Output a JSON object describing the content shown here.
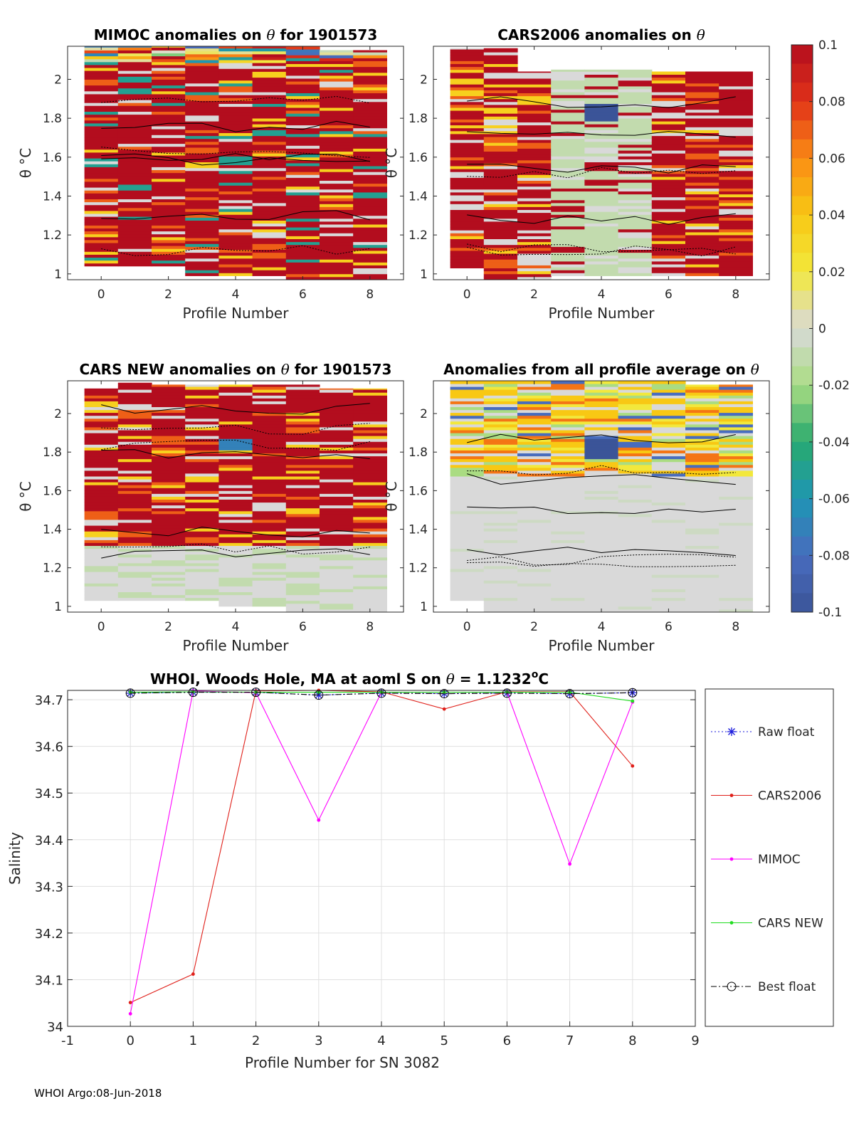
{
  "footer": "WHOI Argo:08-Jun-2018",
  "colors": {
    "red": "#e0201a",
    "magenta": "#ff00ff",
    "green": "#22dd22",
    "blue": "#1a1adc",
    "black": "#000000",
    "grid": "#e0e0e0",
    "anomaly_high": "#b30d1e",
    "anomaly_zero": "#d9d9d9",
    "anomaly_low": "#3b5aa0"
  },
  "chart_data": [
    {
      "type": "heatmap",
      "title_prefix": "MIMOC anomalies on ",
      "title_symbol": "θ",
      "title_suffix": "  for 1901573",
      "xlabel": "Profile Number",
      "ylabel": "θ °C",
      "xlim": [
        -1,
        9
      ],
      "ylim": [
        0.97,
        2.17
      ],
      "xticks": [
        0,
        2,
        4,
        6,
        8
      ],
      "yticks": [
        1,
        1.2,
        1.4,
        1.6,
        1.8,
        2
      ],
      "ytick_labels": [
        "1",
        "1.2",
        "1.4",
        "1.6",
        "1.8",
        "2"
      ],
      "profiles": [
        0,
        1,
        2,
        3,
        4,
        5,
        6,
        7,
        8
      ],
      "theta_range": [
        [
          1.04,
          2.17
        ],
        [
          1.04,
          2.17
        ],
        [
          1.04,
          2.17
        ],
        [
          0.99,
          2.17
        ],
        [
          0.99,
          2.17
        ],
        [
          0.99,
          2.17
        ],
        [
          0.97,
          2.17
        ],
        [
          0.97,
          2.15
        ],
        [
          0.97,
          2.15
        ]
      ],
      "pattern": "warm"
    },
    {
      "type": "heatmap",
      "title_prefix": "CARS2006 anomalies on ",
      "title_symbol": "θ",
      "title_suffix": "",
      "xlabel": "Profile Number",
      "ylabel": "θ °C",
      "xlim": [
        -1,
        9
      ],
      "ylim": [
        0.97,
        2.17
      ],
      "xticks": [
        0,
        2,
        4,
        6,
        8
      ],
      "yticks": [
        1,
        1.2,
        1.4,
        1.6,
        1.8,
        2
      ],
      "ytick_labels": [
        "1",
        "1.2",
        "1.4",
        "1.6",
        "1.8",
        "2"
      ],
      "profiles": [
        0,
        1,
        2,
        3,
        4,
        5,
        6,
        7,
        8
      ],
      "theta_range": [
        [
          1.03,
          2.16
        ],
        [
          0.97,
          2.16
        ],
        [
          0.97,
          2.04
        ],
        [
          0.99,
          2.05
        ],
        [
          0.99,
          2.05
        ],
        [
          0.99,
          2.05
        ],
        [
          0.99,
          2.04
        ],
        [
          0.99,
          2.04
        ],
        [
          0.99,
          2.04
        ]
      ],
      "pattern": "mixed"
    },
    {
      "type": "heatmap",
      "title_prefix": "CARS NEW anomalies on ",
      "title_symbol": "θ",
      "title_suffix": " for 1901573",
      "xlabel": "Profile Number",
      "ylabel": "θ °C",
      "xlim": [
        -1,
        9
      ],
      "ylim": [
        0.97,
        2.17
      ],
      "xticks": [
        0,
        2,
        4,
        6,
        8
      ],
      "yticks": [
        1,
        1.2,
        1.4,
        1.6,
        1.8,
        2
      ],
      "ytick_labels": [
        "1",
        "1.2",
        "1.4",
        "1.6",
        "1.8",
        "2"
      ],
      "profiles": [
        0,
        1,
        2,
        3,
        4,
        5,
        6,
        7,
        8
      ],
      "theta_range": [
        [
          1.03,
          2.13
        ],
        [
          1.03,
          2.16
        ],
        [
          1.03,
          2.15
        ],
        [
          1.03,
          2.15
        ],
        [
          1.0,
          2.15
        ],
        [
          1.0,
          2.15
        ],
        [
          0.97,
          2.15
        ],
        [
          0.97,
          2.13
        ],
        [
          0.97,
          2.13
        ]
      ],
      "pattern": "warm_top"
    },
    {
      "type": "heatmap",
      "title_prefix": "Anomalies from all profile average on ",
      "title_symbol": "θ",
      "title_suffix": "",
      "xlabel": "Profile Number",
      "ylabel": "θ °C",
      "xlim": [
        -1,
        9
      ],
      "ylim": [
        0.97,
        2.17
      ],
      "xticks": [
        0,
        2,
        4,
        6,
        8
      ],
      "yticks": [
        1,
        1.2,
        1.4,
        1.6,
        1.8,
        2
      ],
      "ytick_labels": [
        "1",
        "1.2",
        "1.4",
        "1.6",
        "1.8",
        "2"
      ],
      "profiles": [
        0,
        1,
        2,
        3,
        4,
        5,
        6,
        7,
        8
      ],
      "theta_range": [
        [
          1.03,
          2.17
        ],
        [
          0.97,
          2.17
        ],
        [
          0.97,
          2.17
        ],
        [
          0.97,
          2.17
        ],
        [
          0.97,
          2.17
        ],
        [
          0.97,
          2.17
        ],
        [
          0.97,
          2.17
        ],
        [
          0.97,
          2.15
        ],
        [
          0.97,
          2.15
        ]
      ],
      "pattern": "banded"
    },
    {
      "type": "colorbar",
      "min": -0.1,
      "max": 0.1,
      "ticks": [
        0.1,
        0.08,
        0.06,
        0.04,
        0.02,
        0,
        -0.02,
        -0.04,
        -0.06,
        -0.08,
        -0.1
      ],
      "tick_labels": [
        "0.1",
        "0.08",
        "0.06",
        "0.04",
        "0.02",
        "0",
        "-0.02",
        "-0.04",
        "-0.06",
        "-0.08",
        "-0.1"
      ]
    },
    {
      "type": "line",
      "title_prefix": "WHOI, Woods Hole, MA at aoml S on ",
      "title_symbol": "θ",
      "title_value": " = 1.1232",
      "title_sup": "o",
      "title_unit": "C",
      "xlabel": "Profile Number for SN 3082",
      "ylabel": "Salinity",
      "xlim": [
        -1,
        9
      ],
      "ylim": [
        34,
        34.72
      ],
      "xticks": [
        -1,
        0,
        1,
        2,
        3,
        4,
        5,
        6,
        7,
        8,
        9
      ],
      "xtick_labels": [
        "-1",
        "0",
        "1",
        "2",
        "3",
        "4",
        "5",
        "6",
        "7",
        "8",
        "9"
      ],
      "yticks": [
        34,
        34.1,
        34.2,
        34.3,
        34.4,
        34.5,
        34.6,
        34.7
      ],
      "ytick_labels": [
        "34",
        "34.1",
        "34.2",
        "34.3",
        "34.4",
        "34.5",
        "34.6",
        "34.7"
      ],
      "x": [
        0,
        1,
        2,
        3,
        4,
        5,
        6,
        7,
        8
      ],
      "series": [
        {
          "name": "Raw float",
          "color": "#1a1adc",
          "style": "dotted",
          "marker": "star",
          "values": [
            34.714,
            34.716,
            34.716,
            34.71,
            34.714,
            34.713,
            34.714,
            34.713,
            34.715
          ]
        },
        {
          "name": "CARS2006",
          "color": "#e0201a",
          "style": "solid",
          "marker": "dot",
          "values": [
            34.051,
            34.112,
            34.719,
            34.72,
            34.717,
            34.68,
            34.717,
            34.717,
            34.558
          ]
        },
        {
          "name": "MIMOC",
          "color": "#ff00ff",
          "style": "solid",
          "marker": "dot",
          "values": [
            34.027,
            34.719,
            34.715,
            34.442,
            34.716,
            34.716,
            34.716,
            34.348,
            34.695
          ]
        },
        {
          "name": "CARS NEW",
          "color": "#22dd22",
          "style": "solid",
          "marker": "dot",
          "values": [
            34.716,
            34.717,
            34.716,
            34.716,
            34.716,
            34.716,
            34.716,
            34.716,
            34.697
          ]
        },
        {
          "name": "Best float",
          "color": "#000000",
          "style": "dashdot",
          "marker": "circle",
          "values": [
            34.714,
            34.716,
            34.716,
            34.71,
            34.714,
            34.713,
            34.714,
            34.713,
            34.715
          ]
        }
      ]
    }
  ]
}
